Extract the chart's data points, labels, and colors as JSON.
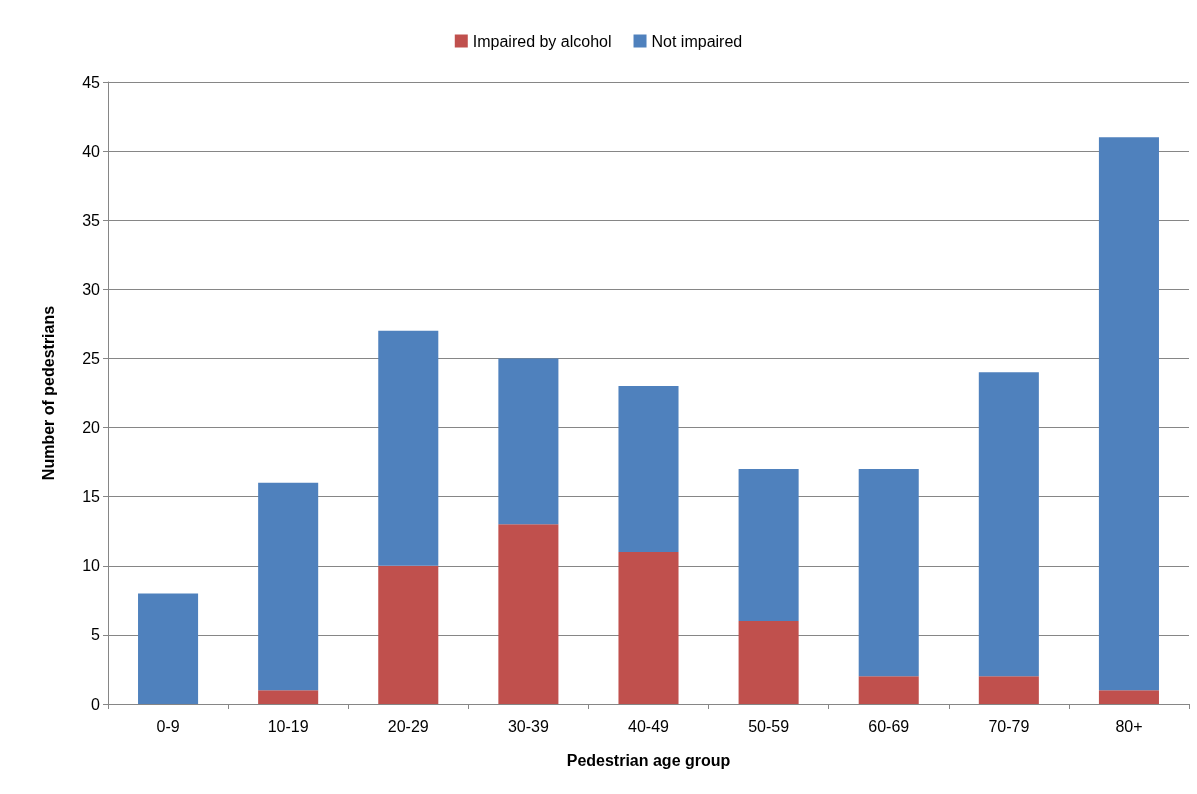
{
  "chart_data": {
    "type": "bar",
    "xlabel": "Pedestrian age group",
    "ylabel": "Number of pedestrians",
    "categories": [
      "0-9",
      "10-19",
      "20-29",
      "30-39",
      "40-49",
      "50-59",
      "60-69",
      "70-79",
      "80+"
    ],
    "series": [
      {
        "name": "Impaired by alcohol",
        "color": "#c0504d",
        "values": [
          0,
          1,
          10,
          13,
          11,
          6,
          2,
          2,
          1
        ]
      },
      {
        "name": "Not impaired",
        "color": "#4f81bd",
        "values": [
          8,
          15,
          17,
          12,
          12,
          11,
          15,
          22,
          40
        ]
      }
    ],
    "stacked": true,
    "ylim": [
      0,
      45
    ],
    "yticks": [
      0,
      5,
      10,
      15,
      20,
      25,
      30,
      35,
      40,
      45
    ],
    "grid": "y",
    "legend": "top"
  }
}
